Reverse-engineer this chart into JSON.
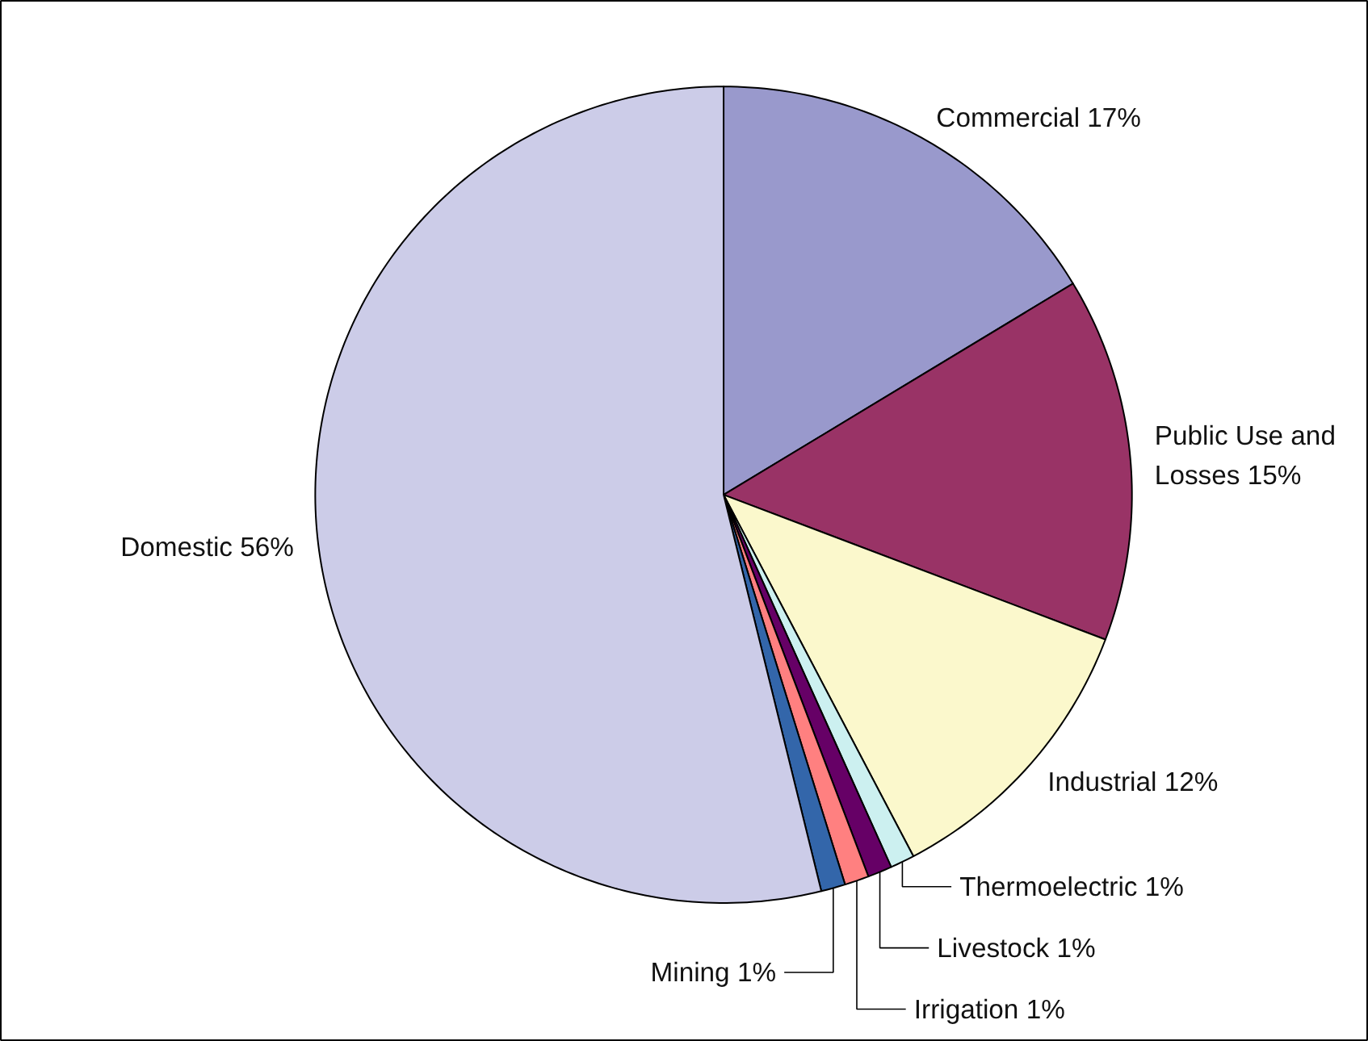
{
  "chart_data": {
    "type": "pie",
    "categories": [
      "Commercial",
      "Public Use and Losses",
      "Industrial",
      "Thermoelectric",
      "Livestock",
      "Irrigation",
      "Mining",
      "Domestic"
    ],
    "values": [
      17,
      15,
      12,
      1,
      1,
      1,
      1,
      56
    ],
    "value_labels": [
      "17%",
      "15%",
      "12%",
      "1%",
      "1%",
      "1%",
      "1%",
      "56%"
    ],
    "colors": [
      "#9999cc",
      "#993366",
      "#fbf8cc",
      "#ccf0f0",
      "#660066",
      "#ff8080",
      "#3366aa",
      "#ccccE8"
    ]
  }
}
